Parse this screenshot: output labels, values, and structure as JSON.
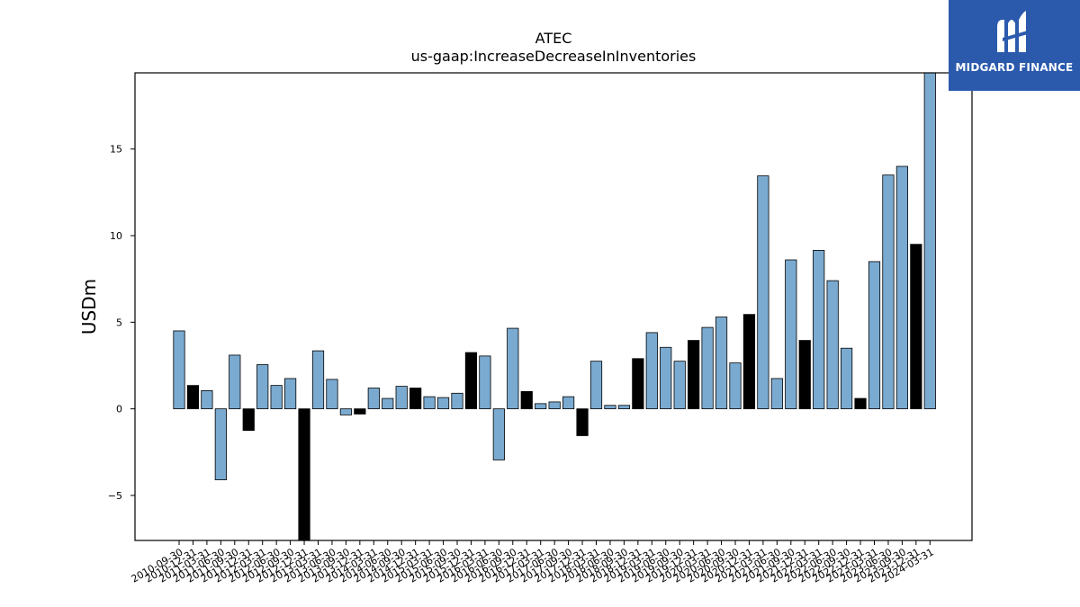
{
  "chart_data": {
    "type": "bar",
    "title": "ATEC",
    "subtitle": "us-gaap:IncreaseDecreaseInInventories",
    "ylabel": "USDm",
    "xlabel": "",
    "ylim": [
      -7.6,
      19.4
    ],
    "yticks": [
      -5,
      0,
      5,
      10,
      15
    ],
    "ytick_labels": [
      "−5",
      "0",
      "5",
      "10",
      "15"
    ],
    "colors": {
      "default": "#7aaad0",
      "highlight": "#000000"
    },
    "categories": [
      "2010-09-30",
      "2010-12-31",
      "2011-03-31",
      "2011-06-30",
      "2011-09-30",
      "2011-12-31",
      "2012-03-31",
      "2012-06-30",
      "2012-09-30",
      "2012-12-31",
      "2013-03-31",
      "2013-06-30",
      "2013-09-30",
      "2013-12-31",
      "2014-03-31",
      "2014-06-30",
      "2014-09-30",
      "2014-12-31",
      "2015-03-31",
      "2015-06-30",
      "2015-09-30",
      "2015-12-31",
      "2016-03-31",
      "2016-06-30",
      "2016-09-30",
      "2016-12-31",
      "2017-03-31",
      "2017-06-30",
      "2017-09-30",
      "2017-12-31",
      "2018-03-31",
      "2018-06-30",
      "2018-09-30",
      "2018-12-31",
      "2019-03-31",
      "2019-06-30",
      "2019-09-30",
      "2019-12-31",
      "2020-03-31",
      "2020-06-30",
      "2020-09-30",
      "2020-12-31",
      "2021-03-31",
      "2021-06-30",
      "2021-09-30",
      "2021-12-31",
      "2022-03-31",
      "2022-06-30",
      "2022-09-30",
      "2022-12-31",
      "2023-03-31",
      "2023-06-30",
      "2023-09-30",
      "2023-12-31",
      "2024-03-31"
    ],
    "values": [
      4.5,
      1.35,
      1.05,
      -4.1,
      3.1,
      -1.25,
      2.55,
      1.35,
      1.75,
      -7.9,
      3.35,
      1.7,
      -0.35,
      -0.3,
      1.2,
      0.6,
      1.3,
      1.2,
      0.7,
      0.65,
      0.9,
      3.25,
      3.05,
      -2.95,
      4.65,
      1.0,
      0.3,
      0.4,
      0.7,
      -1.55,
      2.75,
      0.2,
      0.2,
      2.9,
      4.4,
      3.55,
      2.75,
      3.95,
      4.7,
      5.3,
      2.65,
      5.45,
      13.45,
      1.75,
      8.6,
      3.95,
      9.15,
      7.4,
      3.5,
      0.6,
      8.5,
      13.5,
      14.0,
      9.5,
      19.5
    ],
    "highlighted": [
      false,
      true,
      false,
      false,
      false,
      true,
      false,
      false,
      false,
      true,
      false,
      false,
      false,
      true,
      false,
      false,
      false,
      true,
      false,
      false,
      false,
      true,
      false,
      false,
      false,
      true,
      false,
      false,
      false,
      true,
      false,
      false,
      false,
      true,
      false,
      false,
      false,
      true,
      false,
      false,
      false,
      true,
      false,
      false,
      false,
      true,
      false,
      false,
      false,
      true,
      false,
      false,
      false,
      true,
      false
    ],
    "grid": false
  },
  "logo": {
    "text": "MIDGARD FINANCE",
    "icon": "midgard-logo-icon"
  }
}
